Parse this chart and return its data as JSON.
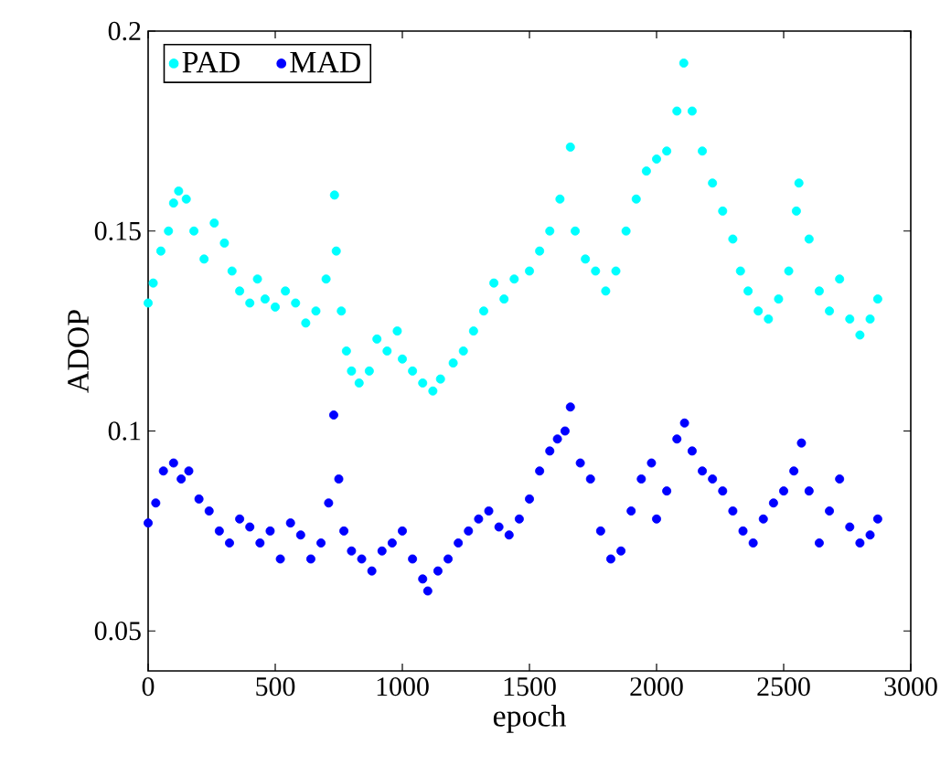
{
  "chart_data": {
    "type": "scatter",
    "xlabel": "epoch",
    "ylabel": "ADOP",
    "xlim": [
      0,
      3000
    ],
    "xticks": [
      0,
      500,
      1000,
      1500,
      2000,
      2500,
      3000
    ],
    "ylim": [
      0.04,
      0.2
    ],
    "yticks": [
      0.05,
      0.1,
      0.15,
      0.2
    ],
    "legend": "top left",
    "marker": "circle",
    "grid": false,
    "series": [
      {
        "name": "PAD",
        "color": "#00ffff",
        "x": [
          0,
          20,
          50,
          80,
          100,
          120,
          150,
          180,
          220,
          260,
          300,
          330,
          360,
          400,
          430,
          460,
          500,
          540,
          580,
          620,
          660,
          700,
          733,
          740,
          760,
          780,
          800,
          830,
          870,
          900,
          940,
          980,
          1000,
          1040,
          1080,
          1120,
          1150,
          1200,
          1240,
          1280,
          1320,
          1360,
          1400,
          1440,
          1500,
          1540,
          1580,
          1620,
          1661,
          1680,
          1720,
          1760,
          1800,
          1840,
          1880,
          1920,
          1960,
          2000,
          2040,
          2080,
          2107,
          2140,
          2180,
          2220,
          2260,
          2300,
          2330,
          2360,
          2400,
          2440,
          2480,
          2520,
          2550,
          2560,
          2600,
          2640,
          2680,
          2720,
          2760,
          2800,
          2840,
          2870
        ],
        "values": [
          0.132,
          0.137,
          0.145,
          0.15,
          0.157,
          0.16,
          0.158,
          0.15,
          0.143,
          0.152,
          0.147,
          0.14,
          0.135,
          0.132,
          0.138,
          0.133,
          0.131,
          0.135,
          0.132,
          0.127,
          0.13,
          0.138,
          0.159,
          0.145,
          0.13,
          0.12,
          0.115,
          0.112,
          0.115,
          0.123,
          0.12,
          0.125,
          0.118,
          0.115,
          0.112,
          0.11,
          0.113,
          0.117,
          0.12,
          0.125,
          0.13,
          0.137,
          0.133,
          0.138,
          0.14,
          0.145,
          0.15,
          0.158,
          0.171,
          0.15,
          0.143,
          0.14,
          0.135,
          0.14,
          0.15,
          0.158,
          0.165,
          0.168,
          0.17,
          0.18,
          0.192,
          0.18,
          0.17,
          0.162,
          0.155,
          0.148,
          0.14,
          0.135,
          0.13,
          0.128,
          0.133,
          0.14,
          0.155,
          0.162,
          0.148,
          0.135,
          0.13,
          0.138,
          0.128,
          0.124,
          0.128,
          0.133
        ]
      },
      {
        "name": "MAD",
        "color": "#0000ff",
        "x": [
          0,
          30,
          60,
          100,
          130,
          160,
          200,
          240,
          280,
          320,
          360,
          400,
          440,
          480,
          520,
          560,
          600,
          640,
          680,
          710,
          730,
          750,
          770,
          800,
          840,
          880,
          920,
          960,
          1000,
          1040,
          1080,
          1100,
          1140,
          1180,
          1220,
          1260,
          1300,
          1340,
          1380,
          1420,
          1460,
          1500,
          1540,
          1580,
          1610,
          1640,
          1661,
          1700,
          1740,
          1780,
          1820,
          1860,
          1900,
          1940,
          1980,
          2000,
          2040,
          2080,
          2110,
          2140,
          2180,
          2220,
          2260,
          2300,
          2340,
          2380,
          2420,
          2460,
          2500,
          2540,
          2570,
          2600,
          2640,
          2680,
          2720,
          2760,
          2800,
          2840,
          2870
        ],
        "values": [
          0.077,
          0.082,
          0.09,
          0.092,
          0.088,
          0.09,
          0.083,
          0.08,
          0.075,
          0.072,
          0.078,
          0.076,
          0.072,
          0.075,
          0.068,
          0.077,
          0.074,
          0.068,
          0.072,
          0.082,
          0.104,
          0.088,
          0.075,
          0.07,
          0.068,
          0.065,
          0.07,
          0.072,
          0.075,
          0.068,
          0.063,
          0.06,
          0.065,
          0.068,
          0.072,
          0.075,
          0.078,
          0.08,
          0.076,
          0.074,
          0.078,
          0.083,
          0.09,
          0.095,
          0.098,
          0.1,
          0.106,
          0.092,
          0.088,
          0.075,
          0.068,
          0.07,
          0.08,
          0.088,
          0.092,
          0.078,
          0.085,
          0.098,
          0.102,
          0.095,
          0.09,
          0.088,
          0.085,
          0.08,
          0.075,
          0.072,
          0.078,
          0.082,
          0.085,
          0.09,
          0.097,
          0.085,
          0.072,
          0.08,
          0.088,
          0.076,
          0.072,
          0.074,
          0.078
        ]
      }
    ]
  }
}
